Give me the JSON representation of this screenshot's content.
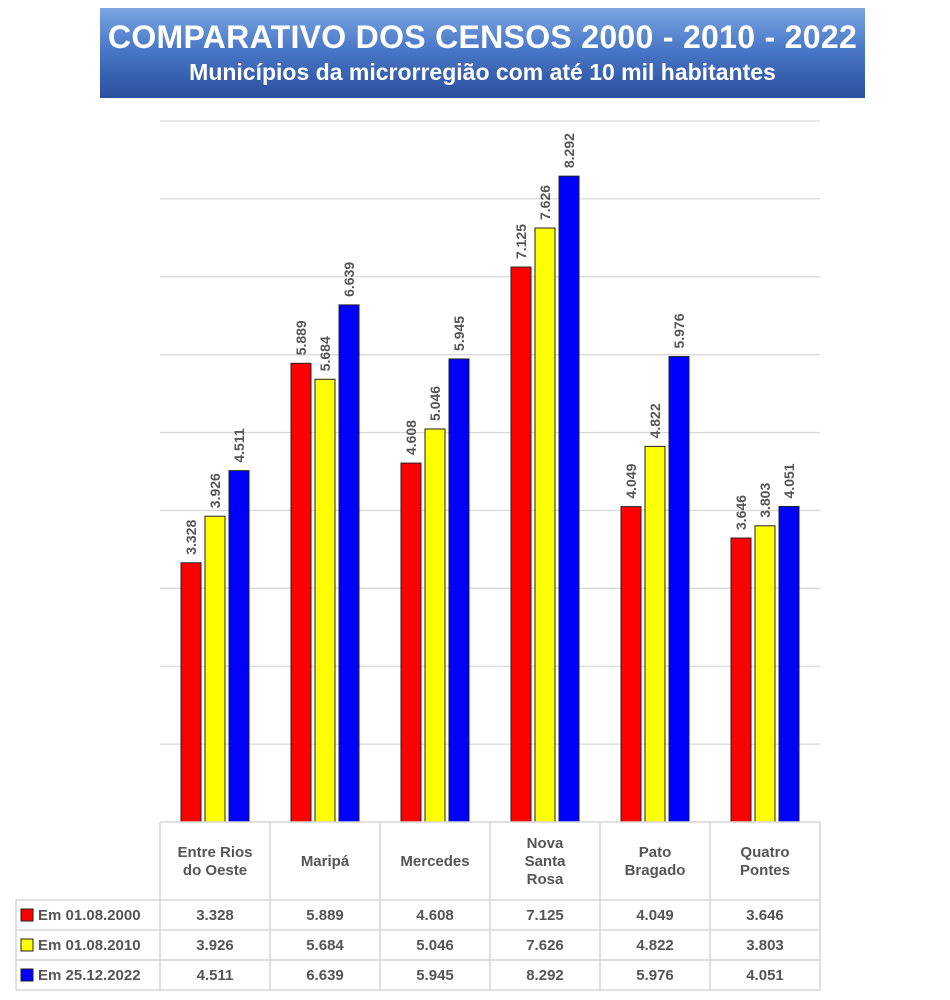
{
  "header": {
    "title": "COMPARATIVO DOS CENSOS 2000 - 2010 - 2022",
    "subtitle": "Municípios da microrregião com até 10 mil habitantes"
  },
  "chart_data": {
    "type": "bar",
    "title": "COMPARATIVO DOS CENSOS 2000 - 2010 - 2022",
    "subtitle": "Municípios da microrregião com até 10 mil habitantes",
    "xlabel": "",
    "ylabel": "",
    "ylim": [
      0,
      9000
    ],
    "grid": true,
    "grid_step": 1000,
    "legend_placement": "bottom-left (in data table)",
    "categories": [
      [
        "Entre Rios",
        "do Oeste"
      ],
      [
        "Maripá"
      ],
      [
        "Mercedes"
      ],
      [
        "Nova",
        "Santa",
        "Rosa"
      ],
      [
        "Pato",
        "Bragado"
      ],
      [
        "Quatro",
        "Pontes"
      ]
    ],
    "series": [
      {
        "name": "Em 01.08.2000",
        "color": "#ff0000",
        "values": [
          3328,
          5889,
          4608,
          7125,
          4049,
          3646
        ],
        "labels": [
          "3.328",
          "5.889",
          "4.608",
          "7.125",
          "4.049",
          "3.646"
        ]
      },
      {
        "name": "Em 01.08.2010",
        "color": "#ffff00",
        "values": [
          3926,
          5684,
          5046,
          7626,
          4822,
          3803
        ],
        "labels": [
          "3.926",
          "5.684",
          "5.046",
          "7.626",
          "4.822",
          "3.803"
        ]
      },
      {
        "name": "Em 25.12.2022",
        "color": "#0000ff",
        "values": [
          4511,
          6639,
          5945,
          8292,
          5976,
          4051
        ],
        "labels": [
          "4.511",
          "6.639",
          "5.945",
          "8.292",
          "5.976",
          "4.051"
        ]
      }
    ]
  }
}
